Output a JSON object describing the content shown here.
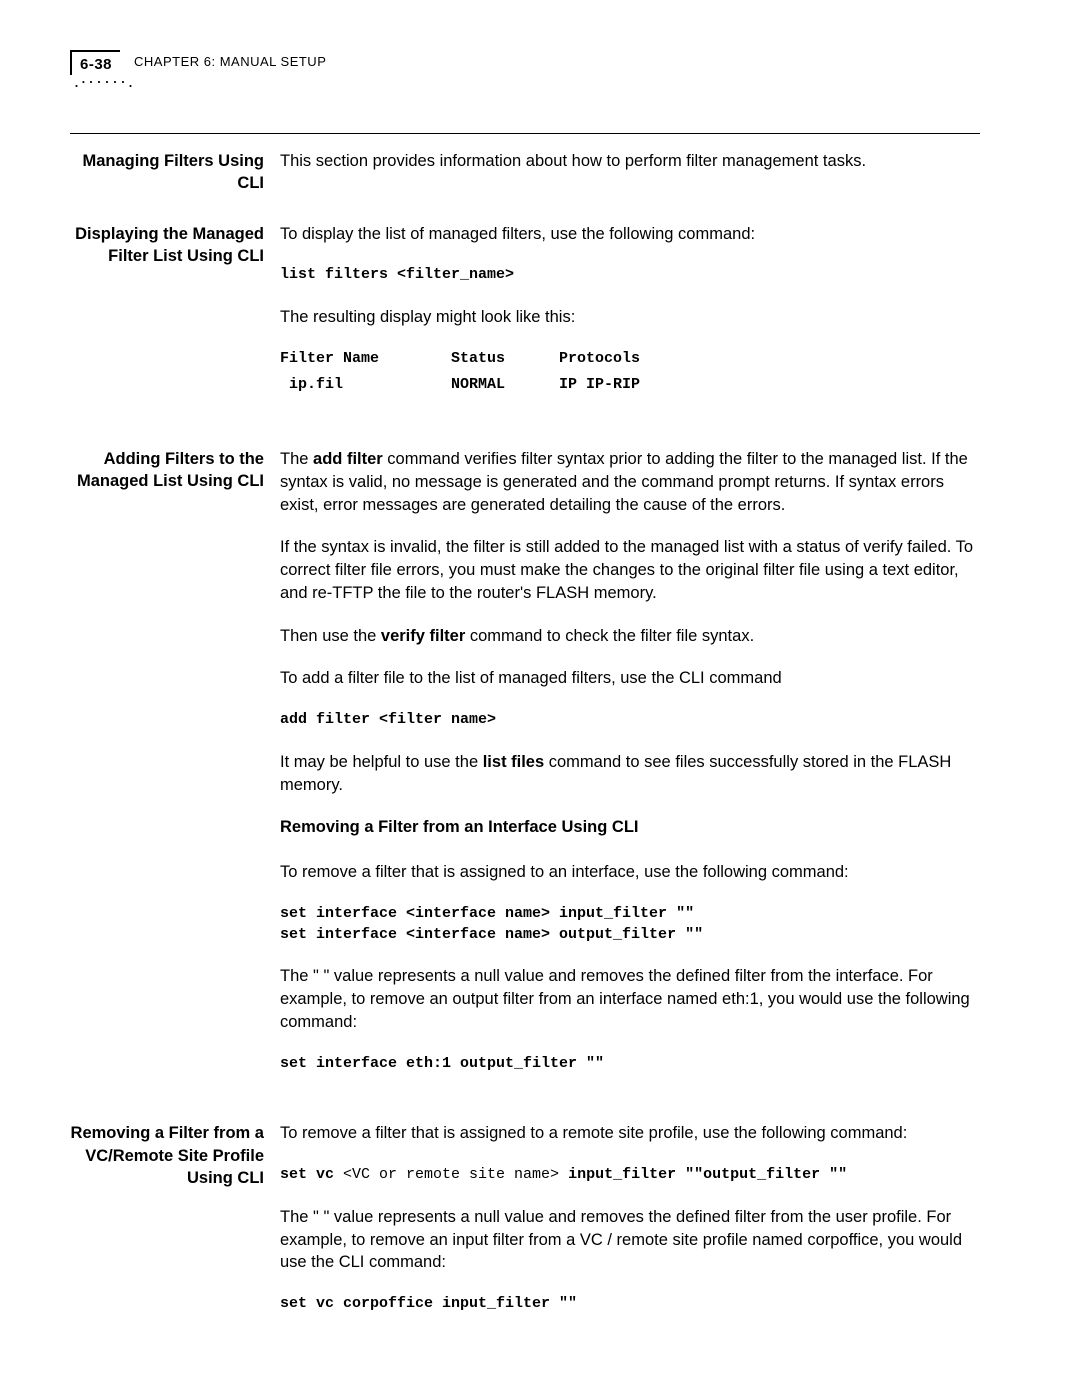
{
  "header": {
    "page_number": "6-38",
    "chapter_label": "CHAPTER 6: MANUAL SETUP"
  },
  "sec_main": {
    "title": "Managing Filters Using CLI",
    "intro": "This section provides information about how to perform filter management tasks."
  },
  "sec_display": {
    "title": "Displaying the Managed Filter List Using CLI",
    "p1": "To display the list of managed filters, use the following command:",
    "cmd1": "list filters <filter_name>",
    "p2": "The resulting display might look like this:",
    "tbl_head": "Filter Name        Status      Protocols",
    "tbl_row": " ip.fil            NORMAL      IP IP-RIP"
  },
  "sec_add": {
    "title": "Adding Filters to the Managed List Using CLI",
    "p1a": "The ",
    "p1b": "add filter",
    "p1c": " command verifies filter syntax prior to adding the filter to the managed list. If the syntax is valid, no message is generated and the command prompt returns. If syntax errors exist, error messages are generated detailing the cause of the errors.",
    "p2": "If the syntax is invalid, the filter is still added to the managed list with a status of verify failed. To correct filter file errors, you must make the changes to the original filter file using a text editor, and re-TFTP the file to the router's FLASH memory.",
    "p3a": "Then use the ",
    "p3b": "verify filter",
    "p3c": " command to check the filter file syntax.",
    "p4": "To add a filter file to the list of managed filters, use the CLI command",
    "cmd1": "add filter <filter name>",
    "p5a": "It may be helpful to use the ",
    "p5b": "list files",
    "p5c": " command to see files successfully stored in the FLASH memory.",
    "sub_remove_iface": "Removing a Filter from an Interface Using CLI",
    "p6": "To remove a filter that is assigned to an interface, use the following command:",
    "cmd2": "set interface <interface name> input_filter \"\"\nset interface <interface name> output_filter \"\"",
    "p7": "The \" \" value represents a null value and removes the defined filter from the interface. For example, to remove an output filter from an interface named eth:1, you would use the following command:",
    "cmd3": "set interface eth:1 output_filter \"\""
  },
  "sec_remove_vc": {
    "title": "Removing a Filter from a VC/Remote Site Profile Using CLI",
    "p1": "To remove a filter that is assigned to a remote site profile, use the following command:",
    "cmd1_pre": "set vc ",
    "cmd1_mid": "<VC or remote site name>",
    "cmd1_post": " input_filter \"\"output_filter \"\"",
    "p2": "The \" \" value represents a null value and removes the defined filter from the user profile. For example, to remove an input filter from a VC / remote site profile named corpoffice, you would use the CLI command:",
    "cmd2": "set vc corpoffice input_filter \"\""
  }
}
